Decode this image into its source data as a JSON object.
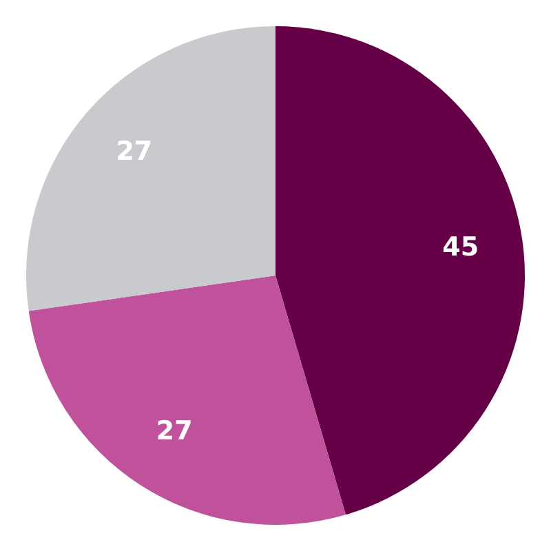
{
  "chart_data": {
    "type": "pie",
    "categories": [
      null,
      null,
      null
    ],
    "values": [
      45,
      27,
      27
    ],
    "colors": [
      "#650046",
      "#c0529c",
      "#c8cacd"
    ],
    "data_labels": true
  }
}
